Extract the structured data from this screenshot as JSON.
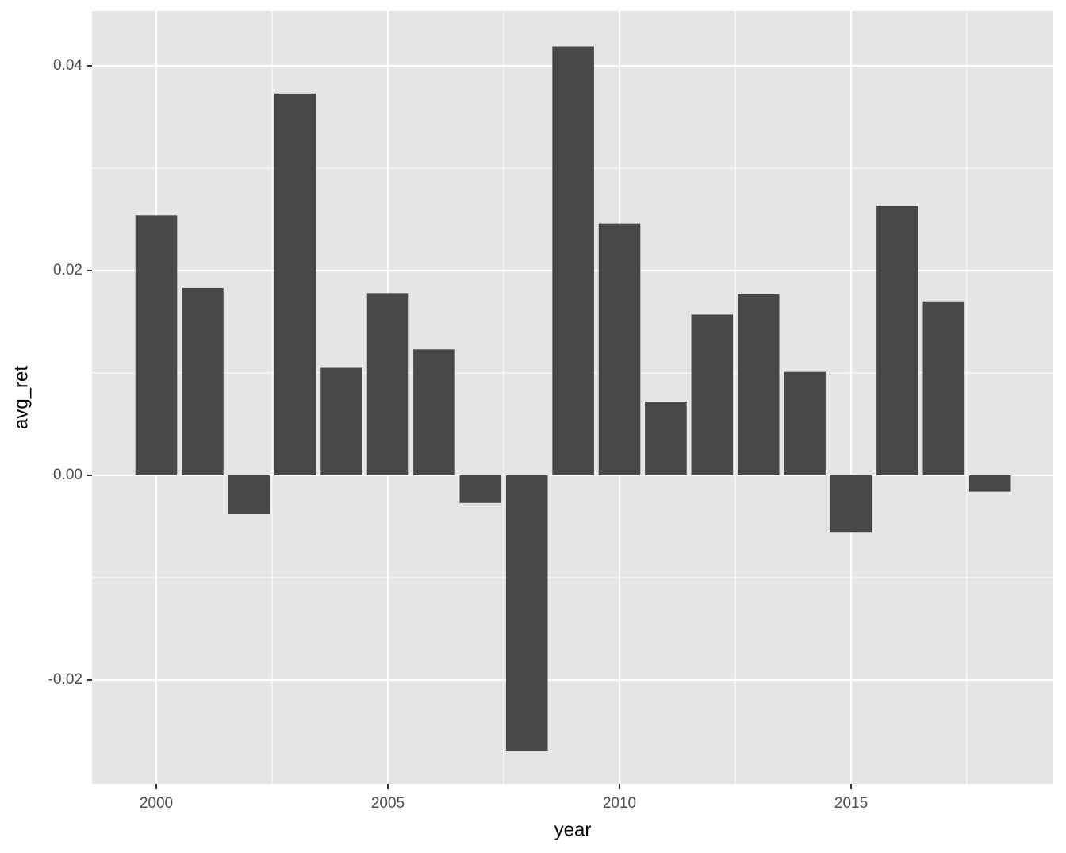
{
  "chart_data": {
    "type": "bar",
    "x_label": "year",
    "y_label": "avg_ret",
    "x": [
      2000,
      2001,
      2002,
      2003,
      2004,
      2005,
      2006,
      2007,
      2008,
      2009,
      2010,
      2011,
      2012,
      2013,
      2014,
      2015,
      2016,
      2017,
      2018
    ],
    "values": [
      0.0254,
      0.0183,
      -0.0038,
      0.0373,
      0.0105,
      0.0178,
      0.0123,
      -0.0027,
      -0.0269,
      0.0419,
      0.0246,
      0.0072,
      0.0157,
      0.0177,
      0.0101,
      -0.0056,
      0.0263,
      0.017,
      -0.0016
    ],
    "color": "#474747",
    "xlim": [
      1998.613,
      2019.366
    ],
    "ylim": [
      -0.03016,
      0.04535
    ],
    "xticks": [
      2000,
      2005,
      2010,
      2015
    ],
    "yticks": [
      -0.02,
      {
        "value": 0,
        "label": "0.00"
      },
      0.02,
      0.04
    ],
    "x_minor_grid": [
      2002.5,
      2007.5,
      2012.5,
      2017.5
    ],
    "y_minor_grid": [
      -0.01,
      0.01,
      0.03
    ],
    "grid": true
  }
}
